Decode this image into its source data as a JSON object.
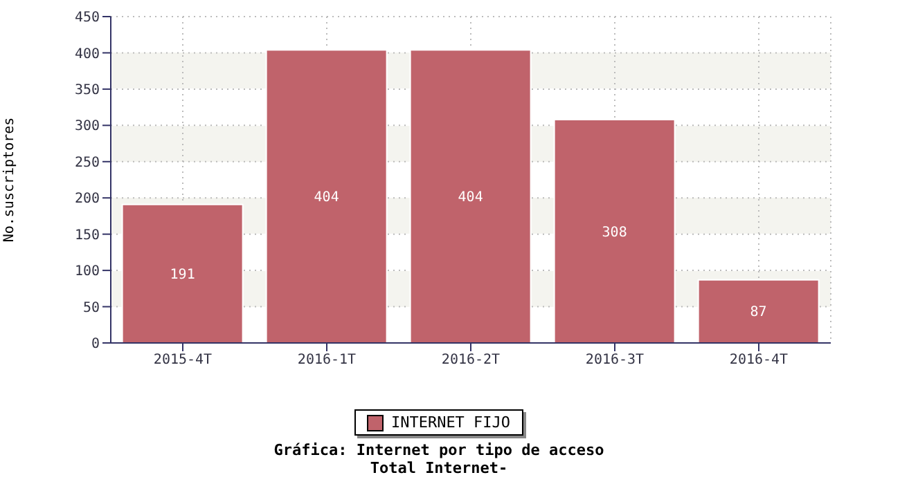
{
  "chart_data": {
    "type": "bar",
    "title": "Gráfica: Internet por tipo de acceso",
    "subtitle": "Total Internet-",
    "ylabel": "No.suscriptores",
    "categories": [
      "2015-4T",
      "2016-1T",
      "2016-2T",
      "2016-3T",
      "2016-4T"
    ],
    "series": [
      {
        "name": "INTERNET FIJO",
        "color": "#c0636b",
        "values": [
          191,
          404,
          404,
          308,
          87
        ]
      }
    ],
    "ylim": [
      0,
      450
    ],
    "yticks": [
      0,
      50,
      100,
      150,
      200,
      250,
      300,
      350,
      400,
      450
    ],
    "grid": true,
    "legend": "bottom",
    "data_labels": true
  }
}
